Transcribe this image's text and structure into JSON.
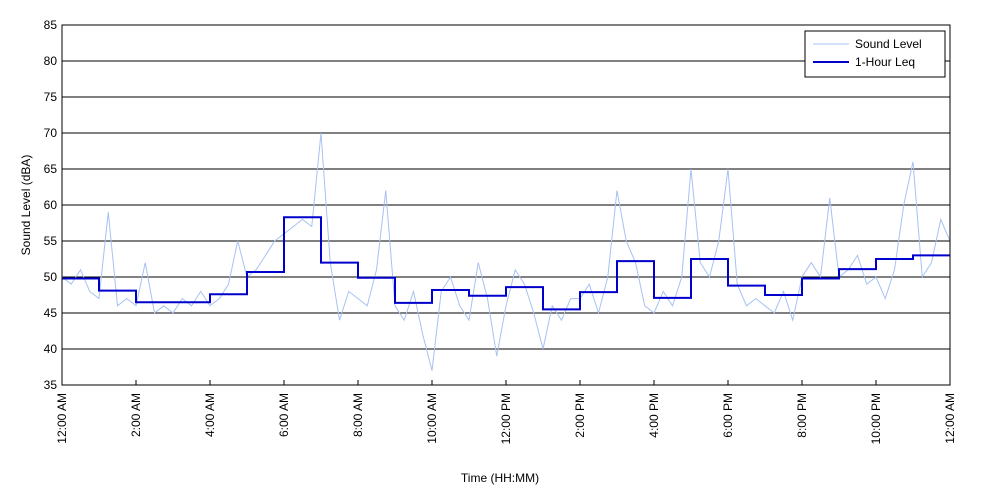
{
  "chart_data": {
    "type": "line",
    "x_label": "Time (HH:MM)",
    "y_label": "Sound Level (dBA)",
    "xlim": [
      0,
      24
    ],
    "ylim": [
      35,
      85
    ],
    "yticks": [
      35,
      40,
      45,
      50,
      55,
      60,
      65,
      70,
      75,
      80,
      85
    ],
    "xticks": [
      {
        "value": 0,
        "label": "12:00 AM"
      },
      {
        "value": 2,
        "label": "2:00 AM"
      },
      {
        "value": 4,
        "label": "4:00 AM"
      },
      {
        "value": 6,
        "label": "6:00 AM"
      },
      {
        "value": 8,
        "label": "8:00 AM"
      },
      {
        "value": 10,
        "label": "10:00 AM"
      },
      {
        "value": 12,
        "label": "12:00 PM"
      },
      {
        "value": 14,
        "label": "2:00 PM"
      },
      {
        "value": 16,
        "label": "4:00 PM"
      },
      {
        "value": 18,
        "label": "6:00 PM"
      },
      {
        "value": 20,
        "label": "8:00 PM"
      },
      {
        "value": 22,
        "label": "10:00 PM"
      },
      {
        "value": 24,
        "label": "12:00 AM"
      }
    ],
    "grid": true,
    "legend": "upper right",
    "series": [
      {
        "name": "Sound Level",
        "color": "#a6c2f2",
        "step": false,
        "x": [
          0,
          0.25,
          0.5,
          0.75,
          1,
          1.25,
          1.5,
          1.75,
          2,
          2.25,
          2.5,
          2.75,
          3,
          3.25,
          3.5,
          3.75,
          4,
          4.25,
          4.5,
          4.75,
          5,
          5.25,
          5.5,
          5.75,
          6,
          6.25,
          6.5,
          6.75,
          7,
          7.25,
          7.5,
          7.75,
          8,
          8.25,
          8.5,
          8.75,
          9,
          9.25,
          9.5,
          9.75,
          10,
          10.25,
          10.5,
          10.75,
          11,
          11.25,
          11.5,
          11.75,
          12,
          12.25,
          12.5,
          12.75,
          13,
          13.25,
          13.5,
          13.75,
          14,
          14.25,
          14.5,
          14.75,
          15,
          15.25,
          15.5,
          15.75,
          16,
          16.25,
          16.5,
          16.75,
          17,
          17.25,
          17.5,
          17.75,
          18,
          18.25,
          18.5,
          18.75,
          19,
          19.25,
          19.5,
          19.75,
          20,
          20.25,
          20.5,
          20.75,
          21,
          21.25,
          21.5,
          21.75,
          22,
          22.25,
          22.5,
          22.75,
          23,
          23.25,
          23.5,
          23.75,
          24
        ],
        "values": [
          50,
          49,
          51,
          48,
          47,
          59,
          46,
          47,
          46,
          52,
          45,
          46,
          45,
          47,
          46,
          48,
          46,
          47,
          49,
          55,
          50,
          51,
          53,
          55,
          56,
          57,
          58,
          57,
          70,
          52,
          44,
          48,
          47,
          46,
          51,
          62,
          46,
          44,
          48,
          42,
          37,
          48,
          50,
          46,
          44,
          52,
          47,
          39,
          46,
          51,
          49,
          45,
          40,
          46,
          44,
          47,
          47,
          49,
          45,
          50,
          62,
          55,
          52,
          46,
          45,
          48,
          46,
          50,
          65,
          52,
          50,
          55,
          65,
          49,
          46,
          47,
          46,
          45,
          48,
          44,
          50,
          52,
          50,
          61,
          50,
          51,
          53,
          49,
          50,
          47,
          51,
          60,
          66,
          50,
          52,
          58,
          55
        ]
      },
      {
        "name": "1-Hour Leq",
        "color": "#0000cc",
        "step": true,
        "x": [
          0,
          1,
          2,
          3,
          4,
          5,
          6,
          7,
          8,
          9,
          10,
          11,
          12,
          13,
          14,
          15,
          16,
          17,
          18,
          19,
          20,
          21,
          22,
          23
        ],
        "values": [
          49.8,
          48.1,
          46.5,
          46.5,
          47.6,
          50.7,
          58.3,
          52.0,
          49.9,
          46.4,
          48.2,
          47.4,
          48.6,
          45.5,
          47.9,
          52.2,
          47.1,
          52.5,
          48.8,
          47.5,
          49.8,
          51.1,
          52.5,
          53.0
        ]
      }
    ]
  }
}
